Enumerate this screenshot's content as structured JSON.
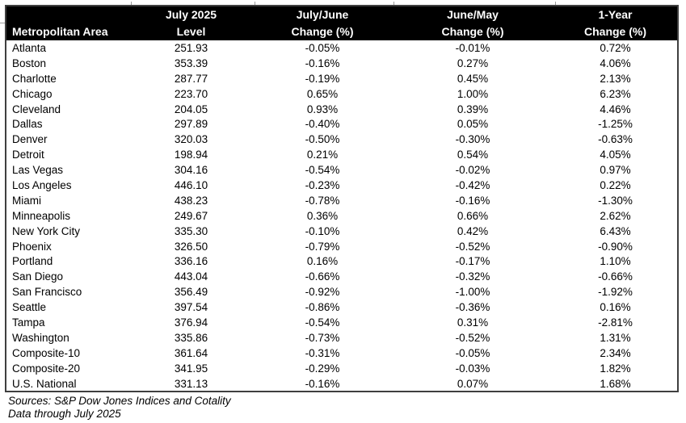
{
  "table": {
    "header": {
      "row1": [
        "",
        "July 2025",
        "July/June",
        "June/May",
        "1-Year"
      ],
      "row2": [
        "Metropolitan Area",
        "Level",
        "Change (%)",
        "Change (%)",
        "Change (%)"
      ]
    }
  },
  "chart_data": {
    "type": "table",
    "title": "",
    "columns": [
      "Metropolitan Area",
      "July 2025 Level",
      "July/June Change (%)",
      "June/May Change (%)",
      "1-Year Change (%)"
    ],
    "rows": [
      [
        "Atlanta",
        "251.93",
        "-0.05%",
        "-0.01%",
        "0.72%"
      ],
      [
        "Boston",
        "353.39",
        "-0.16%",
        "0.27%",
        "4.06%"
      ],
      [
        "Charlotte",
        "287.77",
        "-0.19%",
        "0.45%",
        "2.13%"
      ],
      [
        "Chicago",
        "223.70",
        "0.65%",
        "1.00%",
        "6.23%"
      ],
      [
        "Cleveland",
        "204.05",
        "0.93%",
        "0.39%",
        "4.46%"
      ],
      [
        "Dallas",
        "297.89",
        "-0.40%",
        "0.05%",
        "-1.25%"
      ],
      [
        "Denver",
        "320.03",
        "-0.50%",
        "-0.30%",
        "-0.63%"
      ],
      [
        "Detroit",
        "198.94",
        "0.21%",
        "0.54%",
        "4.05%"
      ],
      [
        "Las Vegas",
        "304.16",
        "-0.54%",
        "-0.02%",
        "0.97%"
      ],
      [
        "Los Angeles",
        "446.10",
        "-0.23%",
        "-0.42%",
        "0.22%"
      ],
      [
        "Miami",
        "438.23",
        "-0.78%",
        "-0.16%",
        "-1.30%"
      ],
      [
        "Minneapolis",
        "249.67",
        "0.36%",
        "0.66%",
        "2.62%"
      ],
      [
        "New York City",
        "335.30",
        "-0.10%",
        "0.42%",
        "6.43%"
      ],
      [
        "Phoenix",
        "326.50",
        "-0.79%",
        "-0.52%",
        "-0.90%"
      ],
      [
        "Portland",
        "336.16",
        "0.16%",
        "-0.17%",
        "1.10%"
      ],
      [
        "San Diego",
        "443.04",
        "-0.66%",
        "-0.32%",
        "-0.66%"
      ],
      [
        "San Francisco",
        "356.49",
        "-0.92%",
        "-1.00%",
        "-1.92%"
      ],
      [
        "Seattle",
        "397.54",
        "-0.86%",
        "-0.36%",
        "0.16%"
      ],
      [
        "Tampa",
        "376.94",
        "-0.54%",
        "0.31%",
        "-2.81%"
      ],
      [
        "Washington",
        "335.86",
        "-0.73%",
        "-0.52%",
        "1.31%"
      ],
      [
        "Composite-10",
        "361.64",
        "-0.31%",
        "-0.05%",
        "2.34%"
      ],
      [
        "Composite-20",
        "341.95",
        "-0.29%",
        "-0.03%",
        "1.82%"
      ],
      [
        "U.S. National",
        "331.13",
        "-0.16%",
        "0.07%",
        "1.68%"
      ]
    ]
  },
  "footer": {
    "line1": "Sources: S&P Dow Jones Indices and Cotality",
    "line2": "Data through July 2025"
  },
  "colors": {
    "header_bg": "#000000",
    "header_text": "#ffffff",
    "body_text": "#000000",
    "border": "#3f3f3f",
    "gridline": "#9b9b9b"
  }
}
